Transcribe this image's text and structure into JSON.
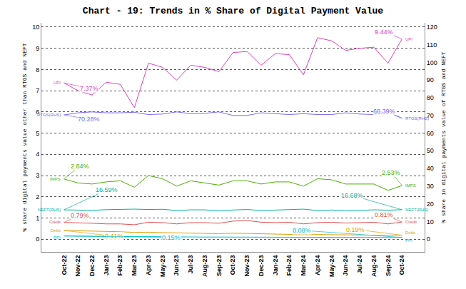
{
  "chart_data": {
    "type": "line",
    "title": "Chart - 19: Trends in % Share of Digital Payment Value",
    "y_label": "% share digital payments value other than RTGS and NEFT",
    "y2_label": "% share in digital payments value of RTGS and NEFT",
    "categories": [
      "Oct-22",
      "Nov-22",
      "Dec-22",
      "Jan-23",
      "Feb-23",
      "Mar-23",
      "Apr-23",
      "May-23",
      "Jun-23",
      "Jul-23",
      "Aug-23",
      "Sep-23",
      "Oct-23",
      "Nov-23",
      "Dec-23",
      "Jan-24",
      "Feb-24",
      "Mar-24",
      "Apr-24",
      "May-24",
      "Jun-24",
      "Jul-24",
      "Aug-24",
      "Sep-24",
      "Oct-24"
    ],
    "ylim": [
      -0.6,
      10.2
    ],
    "yticks": [
      0,
      1,
      2,
      3,
      4,
      5,
      6,
      7,
      8,
      9,
      10
    ],
    "y2lim": [
      -7.2,
      122.4
    ],
    "y2ticks": [
      0,
      10,
      20,
      30,
      40,
      50,
      60,
      70,
      80,
      90,
      100,
      110,
      120
    ],
    "grid": true,
    "data_labels": true,
    "series": [
      {
        "name": "UPI",
        "color": "#e040c0",
        "values": [
          7.37,
          7.0,
          6.8,
          7.4,
          7.3,
          6.2,
          8.3,
          8.1,
          7.5,
          8.2,
          8.1,
          7.9,
          8.8,
          8.85,
          8.2,
          8.75,
          8.7,
          7.75,
          9.5,
          9.35,
          8.9,
          9.0,
          9.05,
          8.3,
          9.44
        ],
        "value_labels": [
          "7.37%",
          null,
          null,
          null,
          null,
          null,
          null,
          null,
          null,
          null,
          null,
          null,
          null,
          null,
          null,
          null,
          null,
          null,
          null,
          null,
          null,
          null,
          null,
          null,
          "9.44%"
        ]
      },
      {
        "name": "RTGS(RHS)",
        "color": "#7b68ee",
        "axis": "y2",
        "values": [
          70.28,
          71.5,
          72.0,
          71.5,
          71.5,
          71.8,
          70.5,
          70.8,
          72.0,
          71.0,
          71.2,
          72.0,
          70.0,
          70.0,
          71.5,
          71.0,
          70.5,
          71.0,
          70.5,
          70.5,
          71.5,
          70.8,
          70.5,
          72.0,
          68.39
        ],
        "value_labels": [
          "70.28%",
          null,
          null,
          null,
          null,
          null,
          null,
          null,
          null,
          null,
          null,
          null,
          null,
          null,
          null,
          null,
          null,
          null,
          null,
          null,
          null,
          null,
          null,
          null,
          "68.39%"
        ]
      },
      {
        "name": "IMPS",
        "color": "#4caf00",
        "values": [
          2.84,
          2.65,
          2.6,
          2.7,
          2.75,
          2.45,
          3.0,
          2.85,
          2.5,
          2.75,
          2.65,
          2.55,
          2.75,
          2.75,
          2.6,
          2.7,
          2.7,
          2.5,
          2.85,
          2.8,
          2.6,
          2.6,
          2.6,
          2.3,
          2.53
        ],
        "value_labels": [
          "2.84%",
          null,
          null,
          null,
          null,
          null,
          null,
          null,
          null,
          null,
          null,
          null,
          null,
          null,
          null,
          null,
          null,
          null,
          null,
          null,
          null,
          null,
          null,
          null,
          "2.53%"
        ]
      },
      {
        "name": "NEFT(RHS)",
        "color": "#00b09b",
        "axis": "y2",
        "values": [
          16.59,
          16.5,
          16.3,
          16.7,
          16.9,
          17.0,
          16.8,
          16.9,
          16.2,
          16.6,
          16.6,
          16.0,
          16.5,
          16.8,
          16.2,
          16.4,
          16.7,
          17.0,
          16.2,
          16.5,
          16.0,
          16.3,
          16.6,
          16.4,
          16.68
        ],
        "value_labels": [
          "16.59%",
          null,
          null,
          null,
          null,
          null,
          null,
          null,
          null,
          null,
          null,
          null,
          null,
          null,
          null,
          null,
          null,
          null,
          null,
          null,
          null,
          null,
          null,
          null,
          "16.68%"
        ]
      },
      {
        "name": "Credit",
        "color": "#e05050",
        "values": [
          0.79,
          0.78,
          0.75,
          0.72,
          0.72,
          0.68,
          0.8,
          0.78,
          0.72,
          0.78,
          0.78,
          0.75,
          0.85,
          0.88,
          0.8,
          0.78,
          0.8,
          0.72,
          0.78,
          0.8,
          0.76,
          0.78,
          0.8,
          0.72,
          0.81
        ],
        "value_labels": [
          "0.79%",
          null,
          null,
          null,
          null,
          null,
          null,
          null,
          null,
          null,
          null,
          null,
          null,
          null,
          null,
          null,
          null,
          null,
          null,
          null,
          null,
          null,
          null,
          null,
          "0.81%"
        ]
      },
      {
        "name": "Debit",
        "color": "#e0a000",
        "values": [
          0.41,
          0.4,
          0.38,
          0.36,
          0.35,
          0.32,
          0.33,
          0.31,
          0.29,
          0.28,
          0.27,
          0.26,
          0.28,
          0.27,
          0.25,
          0.24,
          0.23,
          0.21,
          0.22,
          0.21,
          0.2,
          0.2,
          0.2,
          0.18,
          0.19
        ],
        "value_labels": [
          "0.41%",
          null,
          null,
          null,
          null,
          null,
          null,
          null,
          null,
          null,
          null,
          null,
          null,
          null,
          null,
          null,
          null,
          null,
          null,
          null,
          null,
          null,
          null,
          null,
          "0.19%"
        ]
      },
      {
        "name": "PPI",
        "color": "#00bcd4",
        "values": [
          0.15,
          0.14,
          0.14,
          0.13,
          0.13,
          0.12,
          0.12,
          0.11,
          0.11,
          0.1,
          0.1,
          0.1,
          0.1,
          0.1,
          0.09,
          0.09,
          0.09,
          0.08,
          0.08,
          0.08,
          0.08,
          0.08,
          0.08,
          0.08,
          0.08
        ],
        "value_labels": [
          "0.15%",
          null,
          null,
          null,
          null,
          null,
          null,
          null,
          null,
          null,
          null,
          null,
          null,
          null,
          null,
          null,
          null,
          null,
          null,
          null,
          null,
          null,
          null,
          null,
          "0.08%"
        ]
      }
    ]
  }
}
